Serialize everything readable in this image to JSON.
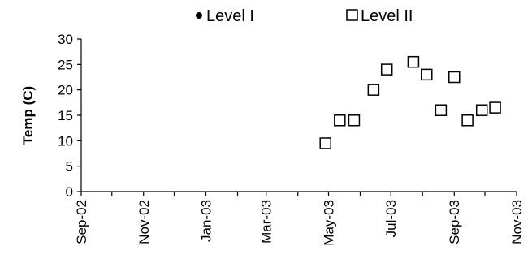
{
  "chart_data": {
    "type": "scatter",
    "ylabel": "Temp (C)",
    "xlabel": "",
    "ylim": [
      0,
      30
    ],
    "yticks": [
      0,
      5,
      10,
      15,
      20,
      25,
      30
    ],
    "xlim": [
      "2002-09-01",
      "2003-11-01"
    ],
    "xticks": [
      "Sep-02",
      "Nov-02",
      "Jan-03",
      "Mar-03",
      "May-03",
      "Jul-03",
      "Sep-03",
      "Nov-03"
    ],
    "legend_position": "top",
    "grid": false,
    "series": [
      {
        "name": "Level I",
        "marker": "filled-circle",
        "points": []
      },
      {
        "name": "Level II",
        "marker": "open-square",
        "points": [
          {
            "x": "2003-04-28",
            "y": 9.5
          },
          {
            "x": "2003-05-12",
            "y": 14
          },
          {
            "x": "2003-05-26",
            "y": 14
          },
          {
            "x": "2003-06-14",
            "y": 20
          },
          {
            "x": "2003-06-27",
            "y": 24
          },
          {
            "x": "2003-07-23",
            "y": 25.5
          },
          {
            "x": "2003-08-05",
            "y": 23
          },
          {
            "x": "2003-08-19",
            "y": 16
          },
          {
            "x": "2003-09-01",
            "y": 22.5
          },
          {
            "x": "2003-09-14",
            "y": 14
          },
          {
            "x": "2003-09-28",
            "y": 16
          },
          {
            "x": "2003-10-11",
            "y": 16.5
          }
        ]
      }
    ]
  }
}
